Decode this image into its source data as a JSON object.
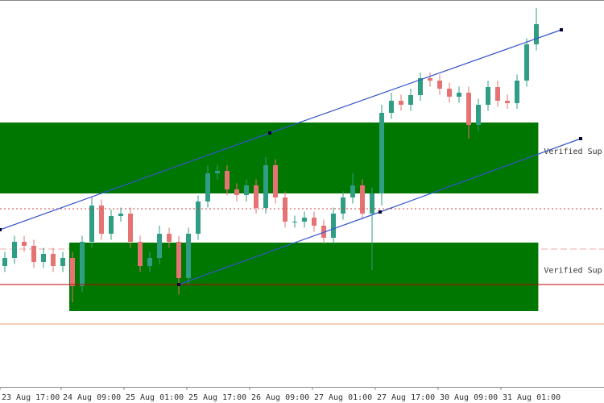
{
  "chart_data": {
    "type": "candlestick",
    "xlim": [
      -0.5,
      62
    ],
    "ylim": [
      0,
      96
    ],
    "xticks": [
      {
        "value": -0.5,
        "label": "23 Aug 17:00"
      },
      {
        "value": 5.83,
        "label": "24 Aug 09:00"
      },
      {
        "value": 12.33,
        "label": "25 Aug 01:00"
      },
      {
        "value": 18.83,
        "label": "25 Aug 17:00"
      },
      {
        "value": 25.33,
        "label": "26 Aug 09:00"
      },
      {
        "value": 31.83,
        "label": "27 Aug 01:00"
      },
      {
        "value": 38.33,
        "label": "27 Aug 17:00"
      },
      {
        "value": 44.83,
        "label": "30 Aug 09:00"
      },
      {
        "value": 51.33,
        "label": "31 Aug 01:00"
      }
    ],
    "up_color": "#2f9e84",
    "down_color": "#e57373",
    "open": [
      30,
      32,
      36,
      35,
      31,
      33,
      30,
      32,
      25,
      36,
      45,
      38,
      42.4,
      43,
      36,
      30,
      32,
      38,
      36,
      27,
      38,
      46,
      53,
      53.6,
      49,
      47.6,
      50,
      44.4,
      55,
      47,
      41,
      41,
      42,
      40,
      37,
      43,
      47,
      50,
      43,
      48,
      68,
      71,
      70,
      72.4,
      76.6,
      76,
      74,
      72,
      73,
      65,
      70,
      74.4,
      71,
      70.4,
      76,
      85
    ],
    "high": [
      33.5,
      37.5,
      37.5,
      36.5,
      34.5,
      34.5,
      33.5,
      33.5,
      37.5,
      47,
      46.5,
      44,
      44.5,
      44.5,
      37.5,
      33.5,
      40,
      39.5,
      37.5,
      39.5,
      47.5,
      55,
      55,
      55,
      50.5,
      51.5,
      51.5,
      57,
      56.5,
      48.5,
      42.5,
      43.5,
      43.5,
      41.5,
      44.5,
      48.5,
      53,
      51.5,
      49.5,
      70,
      73,
      72.5,
      74,
      78,
      78,
      77.5,
      75.5,
      74.5,
      74.5,
      71.5,
      76,
      76,
      72.5,
      77.5,
      86.5,
      94
    ],
    "low": [
      28.5,
      30.5,
      33.5,
      29.5,
      29.5,
      28.5,
      28.5,
      21,
      23.5,
      34.5,
      36.5,
      36.5,
      41,
      34.5,
      28.5,
      28.5,
      30.5,
      34.5,
      23,
      25.5,
      36.5,
      44.5,
      51.5,
      47.5,
      46,
      46,
      43,
      43,
      45.5,
      39.5,
      39.5,
      39.5,
      38.5,
      35.5,
      35.5,
      41.5,
      45.5,
      41.5,
      29,
      45,
      66.5,
      68.5,
      68.5,
      71,
      74.5,
      72.5,
      70.5,
      70.5,
      61.6,
      63.5,
      68.5,
      69.5,
      69,
      69,
      74.5,
      83.5
    ],
    "close": [
      32,
      36,
      35,
      31,
      33,
      30,
      32,
      25,
      36,
      45,
      38,
      42.4,
      43,
      36,
      30,
      32,
      38,
      36,
      27,
      38,
      46,
      53,
      53.6,
      49,
      47.6,
      50,
      44.4,
      55,
      47,
      41,
      41,
      42,
      40,
      37,
      43,
      47,
      50,
      43,
      48,
      68,
      71,
      70,
      72.4,
      76.6,
      76,
      74,
      72,
      73,
      65,
      70,
      74.4,
      71,
      70.4,
      76,
      85,
      90
    ],
    "zones": [
      {
        "from": -0.5,
        "to": 55.2,
        "low": 48,
        "high": 65.6,
        "label": "Verified Sup",
        "color": "#007700"
      },
      {
        "from": 6.67,
        "to": 55.2,
        "low": 18.8,
        "high": 35.8,
        "label": "Verified Sup.",
        "color": "#007700"
      }
    ],
    "levels": [
      {
        "value": 34.2,
        "color": "#f0a8a8",
        "style": "dashed",
        "layer": "back"
      },
      {
        "value": 25.4,
        "color": "#c00000",
        "style": "solid",
        "layer": "front"
      },
      {
        "value": 44.2,
        "color": "#d04040",
        "style": "dotted",
        "layer": "front"
      },
      {
        "value": 15.6,
        "color": "#e8a070",
        "style": "solid",
        "layer": "front"
      }
    ],
    "trendlines": [
      {
        "x": [
          -0.5,
          27.42,
          57.58
        ],
        "y": [
          39,
          63,
          88.6
        ],
        "color": "#3355cc"
      },
      {
        "x": [
          18,
          38.83,
          59.58
        ],
        "y": [
          25.4,
          43.4,
          61.6
        ],
        "color": "#3355cc"
      }
    ]
  }
}
